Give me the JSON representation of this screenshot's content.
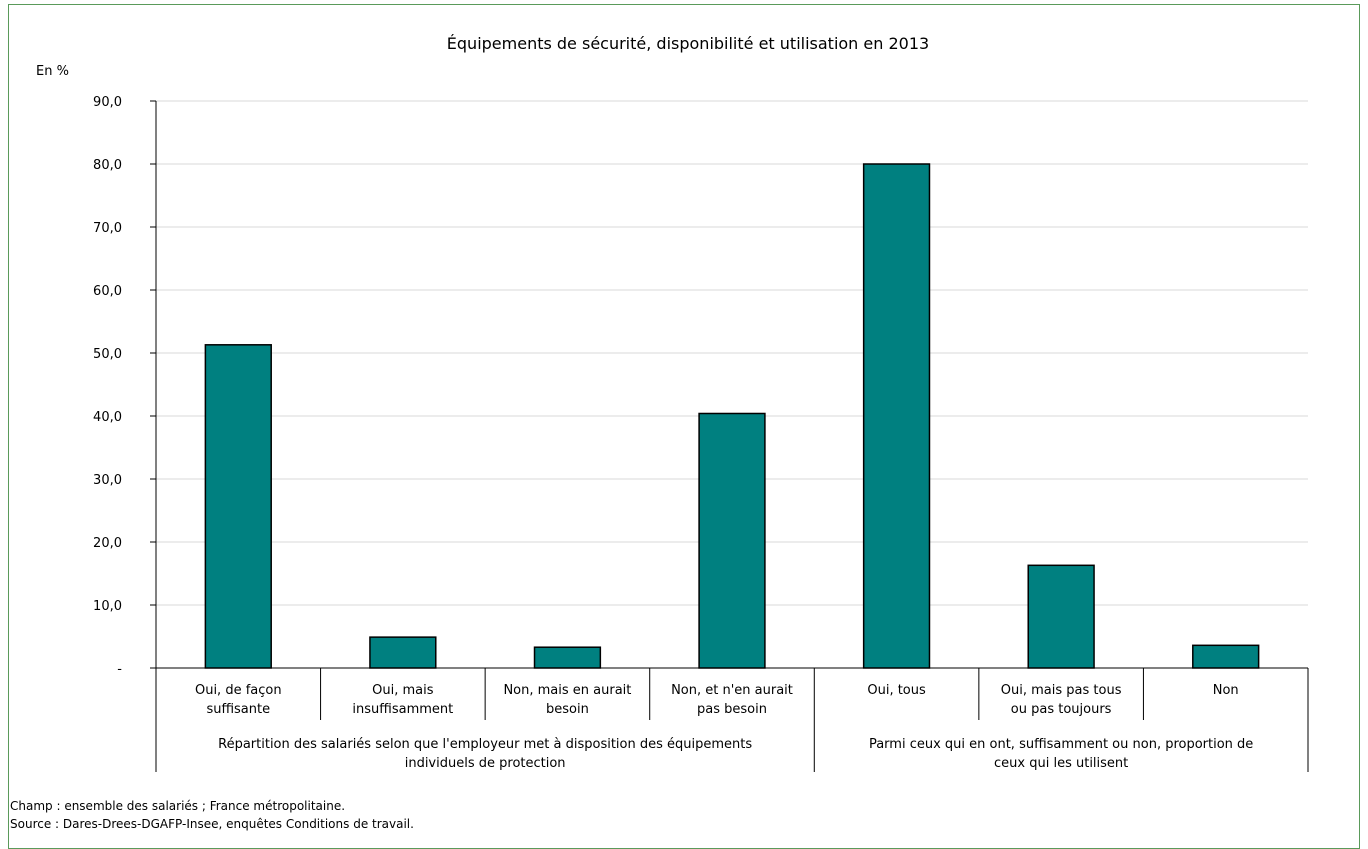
{
  "chart_data": {
    "type": "bar",
    "title": "Équipements de sécurité, disponibilité et utilisation en 2013",
    "unit_label": "En %",
    "ylim": [
      0,
      90
    ],
    "yticks": [
      "-",
      "10,0",
      "20,0",
      "30,0",
      "40,0",
      "50,0",
      "60,0",
      "70,0",
      "80,0",
      "90,0"
    ],
    "grid": true,
    "categories": [
      [
        "Oui, de façon",
        "suffisante"
      ],
      [
        "Oui, mais",
        "insuffisamment"
      ],
      [
        "Non, mais en aurait",
        "besoin"
      ],
      [
        "Non, et n'en aurait",
        "pas besoin"
      ],
      [
        "Oui, tous"
      ],
      [
        "Oui, mais pas tous",
        "ou pas toujours"
      ],
      [
        "Non"
      ]
    ],
    "values": [
      51.3,
      4.9,
      3.3,
      40.4,
      80.0,
      16.3,
      3.6
    ],
    "groups": [
      {
        "label": [
          "Répartition des salariés selon que l'employeur met à disposition des équipements",
          "individuels de protection"
        ],
        "span": [
          0,
          3
        ]
      },
      {
        "label": [
          "Parmi ceux qui en ont, suffisamment ou non, proportion de",
          "ceux qui les utilisent"
        ],
        "span": [
          4,
          6
        ]
      }
    ],
    "colors": {
      "bar": "#008080",
      "bar_stroke": "#000000",
      "grid": "#d9d9d9",
      "axis": "#000000",
      "frame": "#5a9a5a"
    }
  },
  "footnotes": {
    "champ": "Champ : ensemble des salariés ; France métropolitaine.",
    "source": "Source : Dares-Drees-DGAFP-Insee, enquêtes Conditions de travail."
  }
}
